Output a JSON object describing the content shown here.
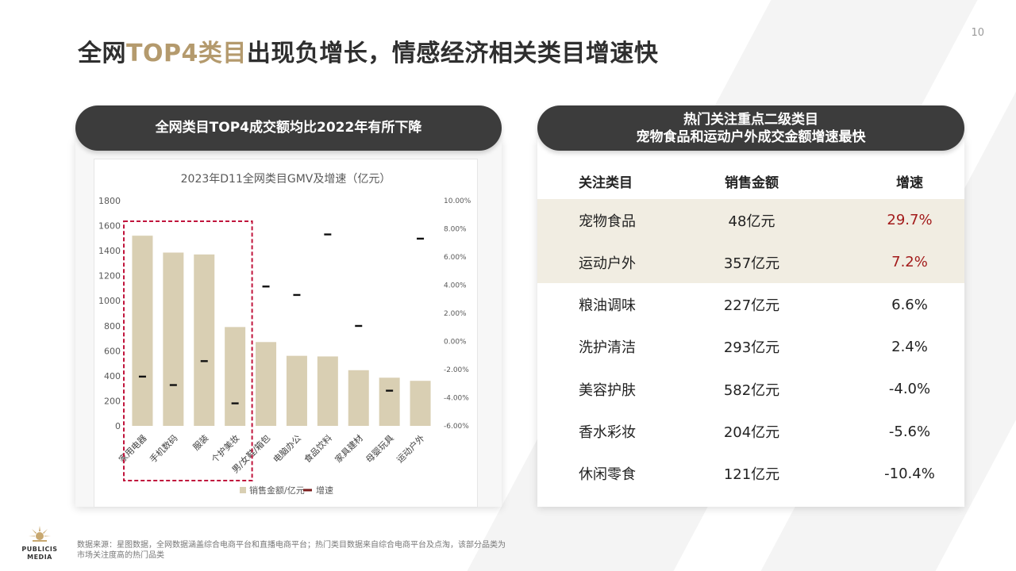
{
  "page_number": "10",
  "title": {
    "before": "全网",
    "highlight": "TOP4类目",
    "after": "出现负增长，情感经济相关类目增速快"
  },
  "left_header": "全网类目TOP4成交额均比2022年有所下降",
  "right_header": {
    "line1": "热门关注重点二级类目",
    "line2": "宠物食品和运动户外成交金额增速最快"
  },
  "chart_data": {
    "type": "bar",
    "title": "2023年D11全网类目GMV及增速（亿元）",
    "categories": [
      "家用电器",
      "手机数码",
      "服装",
      "个护美妆",
      "男/女鞋/箱包",
      "电脑办公",
      "食品饮料",
      "家具建材",
      "母婴玩具",
      "运动户外"
    ],
    "series": [
      {
        "name": "销售金额/亿元",
        "type": "bar",
        "axis": "left",
        "color": "#d9cfb3",
        "values": [
          1520,
          1385,
          1370,
          790,
          670,
          560,
          555,
          445,
          385,
          360
        ]
      },
      {
        "name": "增速",
        "type": "marker",
        "axis": "right",
        "color": "#7a1c1c",
        "values": [
          -2.5,
          -3.1,
          -1.4,
          -4.4,
          3.9,
          3.3,
          7.6,
          1.1,
          -3.5,
          7.3
        ]
      }
    ],
    "y_left": {
      "range": [
        0,
        1800
      ],
      "ticks": [
        "0",
        "200",
        "400",
        "600",
        "800",
        "1000",
        "1200",
        "1400",
        "1600",
        "1800"
      ]
    },
    "y_right": {
      "range": [
        -6,
        10
      ],
      "ticks": [
        "-6.00%",
        "-4.00%",
        "-2.00%",
        "0.00%",
        "2.00%",
        "4.00%",
        "6.00%",
        "8.00%",
        "10.00%"
      ]
    },
    "highlighted_categories": [
      "家用电器",
      "手机数码",
      "服装",
      "个护美妆"
    ],
    "legend": [
      "销售金额/亿元",
      "增速"
    ],
    "legend_position": "bottom",
    "grid": false
  },
  "table": {
    "headers": [
      "关注类目",
      "销售金额",
      "增速"
    ],
    "rows": [
      {
        "category": "宠物食品",
        "amount": "48亿元",
        "growth": "29.7%",
        "highlight": true
      },
      {
        "category": "运动户外",
        "amount": "357亿元",
        "growth": "7.2%",
        "highlight": true
      },
      {
        "category": "粮油调味",
        "amount": "227亿元",
        "growth": "6.6%",
        "highlight": false
      },
      {
        "category": "洗护清洁",
        "amount": "293亿元",
        "growth": "2.4%",
        "highlight": false
      },
      {
        "category": "美容护肤",
        "amount": "582亿元",
        "growth": "-4.0%",
        "highlight": false
      },
      {
        "category": "香水彩妆",
        "amount": "204亿元",
        "growth": "-5.6%",
        "highlight": false
      },
      {
        "category": "休闲零食",
        "amount": "121亿元",
        "growth": "-10.4%",
        "highlight": false
      }
    ],
    "highlight_bg": "#f1ede2",
    "highlight_text_color": "#a31b1b"
  },
  "footer": {
    "source": "数据来源：星图数据，全网数据涵盖综合电商平台和直播电商平台；热门类目数据来自综合电商平台及点淘，该部分品类为市场关注度高的热门品类",
    "logo_line1": "PUBLICIS",
    "logo_line2": "MEDIA"
  },
  "colors": {
    "accent_gold": "#b49a6d",
    "dark_pill": "#3c3c3c",
    "bar": "#d9cfb3",
    "marker": "#7a1c1c",
    "highlight_box": "#c0143c"
  }
}
